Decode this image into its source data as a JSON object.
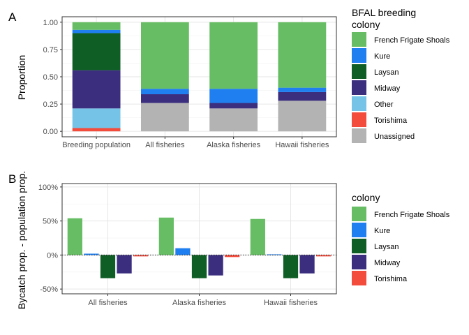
{
  "chart_data": [
    {
      "panel_tag": "A",
      "type": "bar",
      "stacked": true,
      "categories": [
        "Breeding population",
        "All fisheries",
        "Alaska fisheries",
        "Hawaii fisheries"
      ],
      "ylabel": "Proportion",
      "ylim": [
        0,
        1
      ],
      "yticks": [
        "0.00",
        "0.25",
        "0.50",
        "0.75",
        "1.00"
      ],
      "ytick_values": [
        0,
        0.25,
        0.5,
        0.75,
        1.0
      ],
      "grid": true,
      "legend": {
        "title_lines": [
          "BFAL breeding",
          "colony"
        ],
        "placement": "right"
      },
      "series": [
        {
          "name": "Unassigned",
          "color": "#b3b3b3",
          "values": [
            0.0,
            0.26,
            0.21,
            0.28
          ]
        },
        {
          "name": "Torishima",
          "color": "#f44c3c",
          "values": [
            0.03,
            0.0,
            0.0,
            0.0
          ]
        },
        {
          "name": "Other",
          "color": "#75c4e8",
          "values": [
            0.18,
            0.0,
            0.0,
            0.0
          ]
        },
        {
          "name": "Midway",
          "color": "#3b2e7e",
          "values": [
            0.35,
            0.08,
            0.05,
            0.08
          ]
        },
        {
          "name": "Laysan",
          "color": "#0f5e25",
          "values": [
            0.34,
            0.0,
            0.0,
            0.0
          ]
        },
        {
          "name": "Kure",
          "color": "#1f7ff0",
          "values": [
            0.03,
            0.05,
            0.13,
            0.04
          ]
        },
        {
          "name": "French Frigate Shoals",
          "color": "#66bd63",
          "values": [
            0.07,
            0.61,
            0.61,
            0.6
          ]
        }
      ],
      "legend_order": [
        "French Frigate Shoals",
        "Kure",
        "Laysan",
        "Midway",
        "Other",
        "Torishima",
        "Unassigned"
      ]
    },
    {
      "panel_tag": "B",
      "type": "bar",
      "grouped": true,
      "categories": [
        "All fisheries",
        "Alaska fisheries",
        "Hawaii fisheries"
      ],
      "ylabel": "Bycatch prop. - population prop.",
      "ylim": [
        -0.57,
        1.05
      ],
      "yticks": [
        "-50%",
        "0%",
        "50%",
        "100%"
      ],
      "ytick_values": [
        -0.5,
        0,
        0.5,
        1.0
      ],
      "grid": true,
      "zero_line": "dotted",
      "legend": {
        "title_lines": [
          "colony"
        ],
        "placement": "right"
      },
      "series": [
        {
          "name": "French Frigate Shoals",
          "color": "#66bd63",
          "values": [
            0.54,
            0.55,
            0.53
          ]
        },
        {
          "name": "Kure",
          "color": "#1f7ff0",
          "values": [
            0.02,
            0.1,
            0.01
          ]
        },
        {
          "name": "Laysan",
          "color": "#0f5e25",
          "values": [
            -0.34,
            -0.34,
            -0.34
          ]
        },
        {
          "name": "Midway",
          "color": "#3b2e7e",
          "values": [
            -0.27,
            -0.3,
            -0.27
          ]
        },
        {
          "name": "Torishima",
          "color": "#f44c3c",
          "values": [
            -0.02,
            -0.03,
            -0.02
          ]
        }
      ]
    }
  ]
}
